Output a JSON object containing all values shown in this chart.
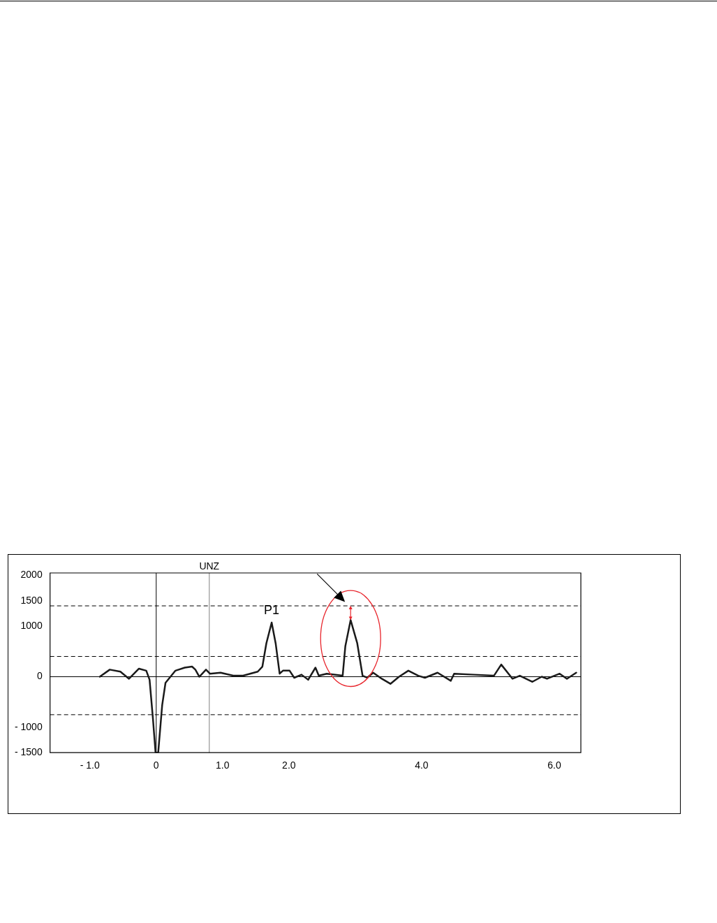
{
  "chart_data": {
    "type": "line",
    "x": [
      -0.85,
      -0.7,
      -0.54,
      -0.41,
      -0.26,
      -0.15,
      -0.1,
      -0.05,
      -0.01,
      0.03,
      0.09,
      0.14,
      0.29,
      0.43,
      0.54,
      0.59,
      0.65,
      0.75,
      0.81,
      0.97,
      1.16,
      1.31,
      1.53,
      1.6,
      1.66,
      1.74,
      1.8,
      1.86,
      1.91,
      2.01,
      2.08,
      2.19,
      2.29,
      2.4,
      2.45,
      2.57,
      2.81,
      2.85,
      2.93,
      3.03,
      3.11,
      3.18,
      3.27,
      3.4,
      3.53,
      3.66,
      3.8,
      3.95,
      4.05,
      4.24,
      4.44,
      4.49,
      4.79,
      5.09,
      5.2,
      5.37,
      5.48,
      5.67,
      5.81,
      5.89,
      6.08,
      6.19,
      6.33
    ],
    "series": [
      {
        "color": "#1a1a1a",
        "values": [
          0,
          140,
          100,
          -40,
          160,
          120,
          -60,
          -820,
          -1500,
          -1500,
          -560,
          -120,
          120,
          180,
          200,
          140,
          0,
          140,
          60,
          80,
          20,
          20,
          100,
          200,
          660,
          1070,
          660,
          60,
          120,
          120,
          -20,
          40,
          -60,
          180,
          20,
          60,
          20,
          600,
          1120,
          660,
          20,
          -20,
          80,
          -40,
          -140,
          0,
          120,
          20,
          -20,
          80,
          -80,
          60,
          40,
          20,
          240,
          -40,
          20,
          -100,
          0,
          -40,
          60,
          -40,
          80
        ]
      }
    ],
    "xlim": [
      -1.6,
      6.4
    ],
    "xticks": [
      {
        "value": -1,
        "label": "- 1.0"
      },
      0,
      {
        "value": 1,
        "label": "1.0"
      },
      {
        "value": 2,
        "label": "2.0"
      },
      {
        "value": 4,
        "label": "4.0"
      },
      {
        "value": 6,
        "label": "6.0"
      }
    ],
    "ylim": [
      -1500,
      2050
    ],
    "yticks": [
      2000,
      1500,
      1000,
      0,
      {
        "value": -1000,
        "label": "- 1000"
      },
      {
        "value": -1500,
        "label": "- 1500"
      }
    ],
    "ref_lines": [
      {
        "axis": "x",
        "value": 0,
        "label": null,
        "color": "#000000",
        "line_style": "solid"
      },
      {
        "axis": "x",
        "value": 0.8,
        "label": "UNZ",
        "color": "#808080",
        "line_style": "solid"
      },
      {
        "axis": "y",
        "value": 0,
        "label": null,
        "color": "#000000",
        "line_style": "solid"
      },
      {
        "axis": "y",
        "value": 1400,
        "label": null,
        "color": "#000000",
        "line_style": "dashed"
      },
      {
        "axis": "y",
        "value": 400,
        "label": null,
        "color": "#000000",
        "line_style": "dashed"
      },
      {
        "axis": "y",
        "value": -750,
        "label": null,
        "color": "#000000",
        "line_style": "dashed"
      }
    ],
    "annotations": [
      {
        "text": "P1",
        "x": 1.74,
        "y": 1070
      }
    ],
    "grid": false,
    "legend": false,
    "marker": "none",
    "line_style": "solid"
  }
}
